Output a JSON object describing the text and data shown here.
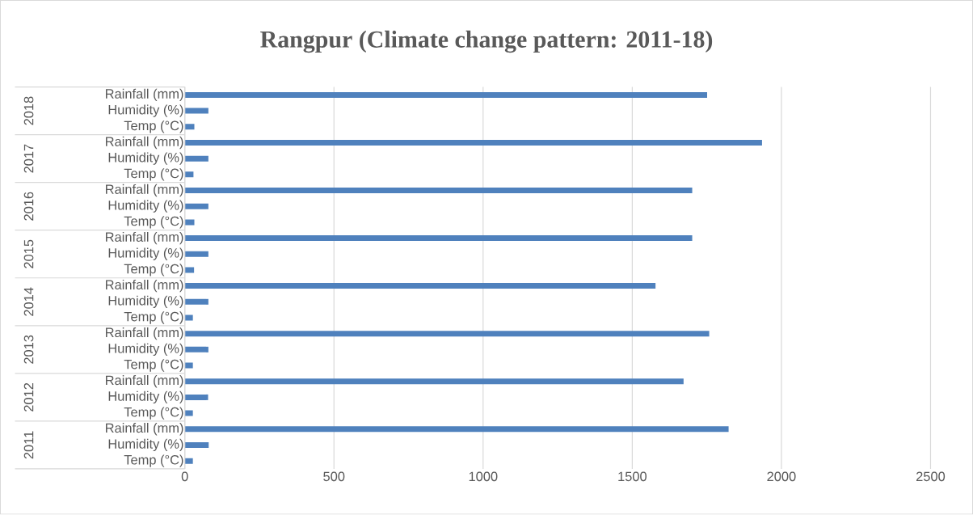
{
  "chart_data": {
    "type": "bar",
    "orientation": "horizontal",
    "title": "Rangpur (Climate change pattern: 2011-18)",
    "categories": [
      "Rainfall (mm)",
      "Humidity (%)",
      "Temp (°C)",
      "Rainfall (mm)",
      "Humidity (%)",
      "Temp (°C)",
      "Rainfall (mm)",
      "Humidity (%)",
      "Temp (°C)",
      "Rainfall (mm)",
      "Humidity (%)",
      "Temp (°C)",
      "Rainfall (mm)",
      "Humidity (%)",
      "Temp (°C)",
      "Rainfall (mm)",
      "Humidity (%)",
      "Temp (°C)",
      "Rainfall (mm)",
      "Humidity (%)",
      "Temp (°C)",
      "Rainfall (mm)",
      "Humidity (%)",
      "Temp (°C)"
    ],
    "values": [
      1751,
      79,
      32,
      1935,
      79,
      29,
      1701,
      79,
      32,
      1701,
      79,
      31,
      1578,
      79,
      27,
      1758,
      79,
      27,
      1672,
      78,
      27,
      1823,
      80,
      27
    ],
    "color": "#4f81bd",
    "annotations": [
      "2018",
      "2017",
      "2016",
      "2015",
      "2014",
      "2013",
      "2012",
      "2011"
    ],
    "xlim": [
      0,
      2500
    ],
    "xticks": [
      0,
      500,
      1000,
      1500,
      2000,
      2500
    ],
    "grid": "x"
  }
}
